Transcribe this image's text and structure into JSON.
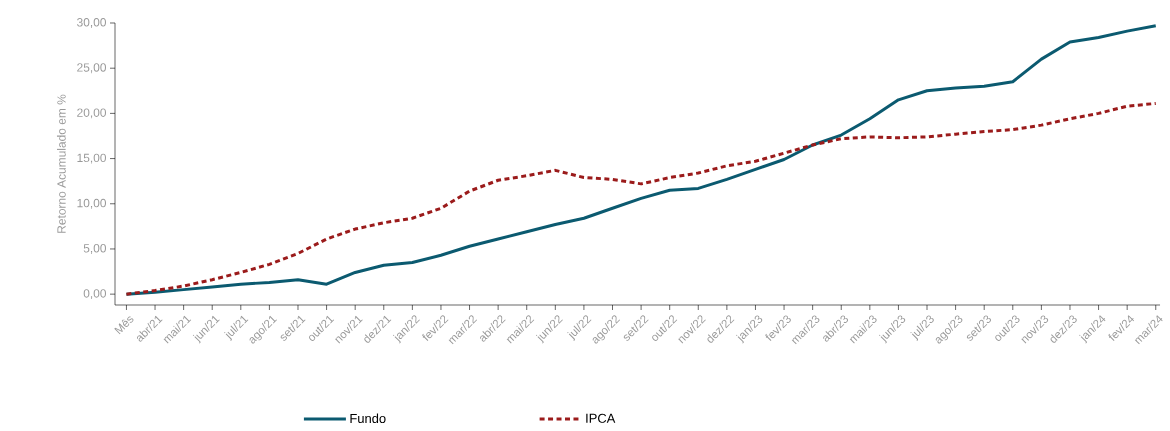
{
  "chart_data": {
    "type": "line",
    "ylabel": "Retorno Acumulado em %",
    "legend": "bottom",
    "grid": false,
    "marker": "none",
    "categories": [
      "Mês",
      "abr/21",
      "mai/21",
      "jun/21",
      "jul/21",
      "ago/21",
      "set/21",
      "out/21",
      "nov/21",
      "dez/21",
      "jan/22",
      "fev/22",
      "mar/22",
      "abr/22",
      "mai/22",
      "jun/22",
      "jul/22",
      "ago/22",
      "set/22",
      "out/22",
      "nov/22",
      "dez/22",
      "jan/23",
      "fev/23",
      "mar/23",
      "abr/23",
      "mai/23",
      "jun/23",
      "jul/23",
      "ago/23",
      "set/23",
      "out/23",
      "nov/23",
      "dez/23",
      "jan/24",
      "fev/24",
      "mar/24"
    ],
    "ylim": [
      -1.2,
      30
    ],
    "yticks": [
      {
        "value": 0,
        "label": "0,00"
      },
      {
        "value": 5,
        "label": "5,00"
      },
      {
        "value": 10,
        "label": "10,00"
      },
      {
        "value": 15,
        "label": "15,00"
      },
      {
        "value": 20,
        "label": "20,00"
      },
      {
        "value": 25,
        "label": "25,00"
      },
      {
        "value": 30,
        "label": "30,00"
      }
    ],
    "series": [
      {
        "name": "Fundo",
        "color": "#0b5a70",
        "line_style": "solid",
        "values": [
          0,
          0.2,
          0.5,
          0.8,
          1.1,
          1.3,
          1.6,
          1.1,
          2.4,
          3.2,
          3.5,
          4.3,
          5.3,
          6.1,
          6.9,
          7.7,
          8.4,
          9.5,
          10.6,
          11.5,
          11.7,
          12.7,
          13.8,
          14.9,
          16.5,
          17.6,
          19.4,
          21.5,
          22.5,
          22.8,
          23.0,
          23.5,
          26.0,
          27.9,
          28.4,
          29.1,
          29.7
        ]
      },
      {
        "name": "IPCA",
        "color": "#9b1b1b",
        "line_style": "dashed",
        "values": [
          0,
          0.4,
          0.9,
          1.6,
          2.4,
          3.3,
          4.5,
          6.1,
          7.2,
          7.9,
          8.4,
          9.5,
          11.4,
          12.6,
          13.1,
          13.7,
          12.9,
          12.7,
          12.2,
          12.9,
          13.4,
          14.2,
          14.7,
          15.6,
          16.5,
          17.2,
          17.4,
          17.3,
          17.4,
          17.7,
          18.0,
          18.2,
          18.7,
          19.4,
          20.0,
          20.8,
          21.1
        ]
      }
    ]
  }
}
